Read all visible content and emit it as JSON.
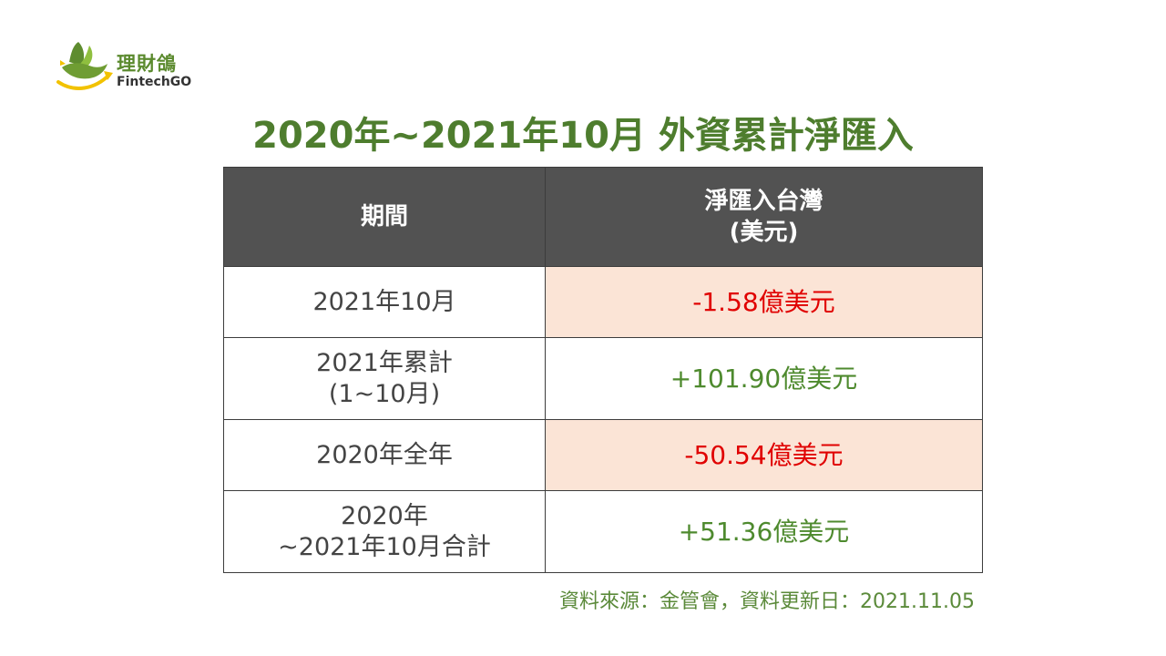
{
  "logo": {
    "name": "理財鴿",
    "subtitle": "FintechGO",
    "icon": "dove-icon"
  },
  "title": "2020年~2021年10月 外資累計淨匯入",
  "table": {
    "headers": {
      "period": "期間",
      "value_line1": "淨匯入台灣",
      "value_line2": "(美元)"
    },
    "rows": [
      {
        "period_line1": "2021年10月",
        "period_line2": "",
        "value": "-1.58億美元",
        "sign": "negative"
      },
      {
        "period_line1": "2021年累計",
        "period_line2": "(1~10月)",
        "value": "+101.90億美元",
        "sign": "positive"
      },
      {
        "period_line1": "2020年全年",
        "period_line2": "",
        "value": "-50.54億美元",
        "sign": "negative"
      },
      {
        "period_line1": "2020年",
        "period_line2": "~2021年10月合計",
        "value": "+51.36億美元",
        "sign": "positive"
      }
    ]
  },
  "source": "資料來源：金管會，資料更新日：2021.11.05",
  "colors": {
    "title_green": "#4e7d2e",
    "header_bg": "#525252",
    "negative_bg": "#fbe4d6",
    "negative_text": "#e00000",
    "positive_text": "#4e8a2e"
  }
}
